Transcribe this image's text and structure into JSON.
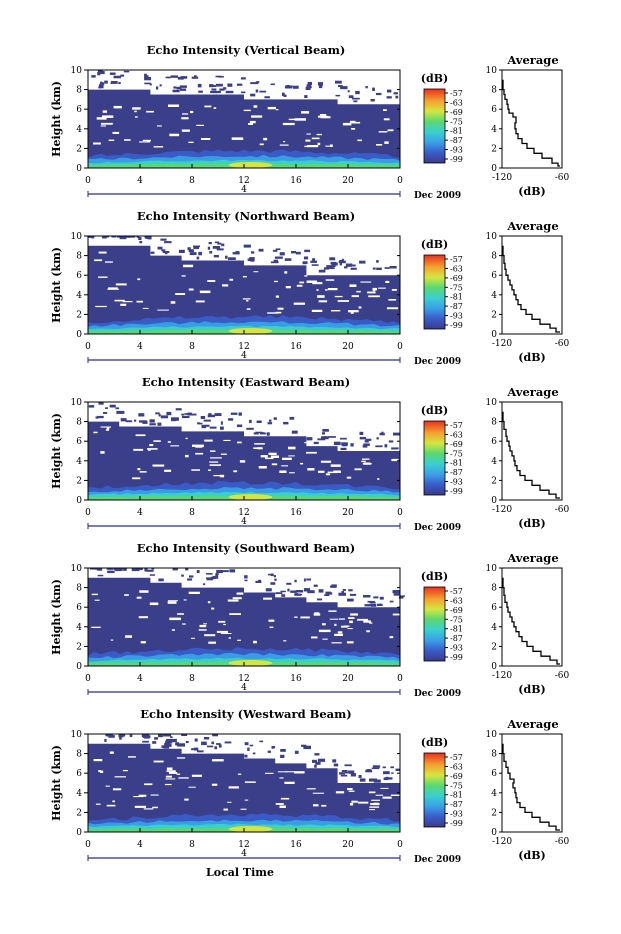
{
  "chart_data": [
    {
      "type": "heatmap",
      "title": "Echo Intensity (Vertical Beam)",
      "ylabel": "Height (km)",
      "xlim": [
        0,
        24
      ],
      "ylim": [
        0,
        10
      ],
      "x_ticks": [
        "0",
        "4",
        "8",
        "12",
        "16",
        "20",
        "0"
      ],
      "y_ticks": [
        "0",
        "2",
        "4",
        "6",
        "8",
        "10"
      ],
      "date_label": "Dec 2009",
      "day_label": "4",
      "colorbar_unit": "(dB)",
      "colorbar_ticks": [
        "-57",
        "-63",
        "-69",
        "-75",
        "-81",
        "-87",
        "-93",
        "-99"
      ],
      "echo_top_km": [
        8.0,
        8.0,
        7.5,
        7.5,
        7.5,
        7.0,
        7.0,
        7.0,
        6.5,
        6.5
      ],
      "profile": {
        "title": "Average",
        "xlabel": "(dB)",
        "xlim": [
          -120,
          -60
        ],
        "x_ticks": [
          "-120",
          "-60"
        ],
        "ylim": [
          0,
          10
        ],
        "x": [
          -62,
          -64,
          -70,
          -80,
          -88,
          -95,
          -100,
          -104,
          -106,
          -107,
          -106,
          -109,
          -113,
          -114,
          -115,
          -117,
          -118,
          -119,
          -119
        ],
        "y": [
          0.2,
          0.5,
          1.0,
          1.5,
          2.0,
          2.5,
          3.0,
          3.5,
          4.0,
          4.6,
          5.2,
          5.6,
          6.0,
          6.5,
          7.0,
          7.5,
          8.0,
          8.5,
          9.0
        ]
      }
    },
    {
      "type": "heatmap",
      "title": "Echo Intensity (Northward Beam)",
      "ylabel": "Height (km)",
      "xlim": [
        0,
        24
      ],
      "ylim": [
        0,
        10
      ],
      "x_ticks": [
        "0",
        "4",
        "8",
        "12",
        "16",
        "20",
        "0"
      ],
      "y_ticks": [
        "0",
        "2",
        "4",
        "6",
        "8",
        "10"
      ],
      "date_label": "Dec 2009",
      "day_label": "4",
      "colorbar_unit": "(dB)",
      "colorbar_ticks": [
        "-57",
        "-63",
        "-69",
        "-75",
        "-81",
        "-87",
        "-93",
        "-99"
      ],
      "echo_top_km": [
        9.0,
        9.0,
        8.0,
        7.5,
        7.5,
        7.0,
        7.0,
        6.0,
        6.0,
        6.0
      ],
      "profile": {
        "title": "Average",
        "xlabel": "(dB)",
        "xlim": [
          -120,
          -60
        ],
        "x_ticks": [
          "-120",
          "-60"
        ],
        "ylim": [
          0,
          10
        ],
        "x": [
          -62,
          -66,
          -72,
          -82,
          -90,
          -96,
          -101,
          -104,
          -106,
          -108,
          -110,
          -112,
          -114,
          -116,
          -117,
          -118,
          -119
        ],
        "y": [
          0.2,
          0.6,
          1.0,
          1.5,
          2.0,
          2.5,
          3.0,
          3.5,
          4.0,
          4.5,
          5.0,
          5.5,
          6.0,
          6.6,
          7.2,
          8.0,
          9.0
        ]
      }
    },
    {
      "type": "heatmap",
      "title": "Echo Intensity (Eastward Beam)",
      "ylabel": "Height (km)",
      "xlim": [
        0,
        24
      ],
      "ylim": [
        0,
        10
      ],
      "x_ticks": [
        "0",
        "4",
        "8",
        "12",
        "16",
        "20",
        "0"
      ],
      "y_ticks": [
        "0",
        "2",
        "4",
        "6",
        "8",
        "10"
      ],
      "date_label": "Dec 2009",
      "day_label": "4",
      "colorbar_unit": "(dB)",
      "colorbar_ticks": [
        "-57",
        "-63",
        "-69",
        "-75",
        "-81",
        "-87",
        "-93",
        "-99"
      ],
      "echo_top_km": [
        8.0,
        7.5,
        7.5,
        7.0,
        7.0,
        6.5,
        6.5,
        5.5,
        5.0,
        5.0
      ],
      "profile": {
        "title": "Average",
        "xlabel": "(dB)",
        "xlim": [
          -120,
          -60
        ],
        "x_ticks": [
          "-120",
          "-60"
        ],
        "ylim": [
          0,
          10
        ],
        "x": [
          -62,
          -66,
          -73,
          -82,
          -90,
          -97,
          -102,
          -105,
          -107,
          -108,
          -110,
          -112,
          -113,
          -115,
          -116,
          -118,
          -119
        ],
        "y": [
          0.2,
          0.6,
          1.0,
          1.5,
          2.0,
          2.5,
          3.0,
          3.5,
          4.0,
          4.5,
          5.0,
          5.5,
          6.0,
          6.5,
          7.2,
          8.0,
          9.0
        ]
      }
    },
    {
      "type": "heatmap",
      "title": "Echo Intensity (Southward Beam)",
      "ylabel": "Height (km)",
      "xlim": [
        0,
        24
      ],
      "ylim": [
        0,
        10
      ],
      "x_ticks": [
        "0",
        "4",
        "8",
        "12",
        "16",
        "20",
        "0"
      ],
      "y_ticks": [
        "0",
        "2",
        "4",
        "6",
        "8",
        "10"
      ],
      "date_label": "Dec 2009",
      "day_label": "4",
      "colorbar_unit": "(dB)",
      "colorbar_ticks": [
        "-57",
        "-63",
        "-69",
        "-75",
        "-81",
        "-87",
        "-93",
        "-99"
      ],
      "echo_top_km": [
        9.0,
        9.0,
        8.5,
        8.0,
        8.0,
        7.5,
        7.0,
        6.5,
        6.0,
        6.0
      ],
      "profile": {
        "title": "Average",
        "xlabel": "(dB)",
        "xlim": [
          -120,
          -60
        ],
        "x_ticks": [
          "-120",
          "-60"
        ],
        "ylim": [
          0,
          10
        ],
        "x": [
          -62,
          -65,
          -72,
          -81,
          -89,
          -95,
          -100,
          -103,
          -106,
          -108,
          -110,
          -112,
          -114,
          -115,
          -117,
          -118,
          -119
        ],
        "y": [
          0.2,
          0.6,
          1.0,
          1.5,
          2.0,
          2.5,
          3.0,
          3.5,
          4.0,
          4.5,
          5.0,
          5.5,
          6.0,
          6.5,
          7.2,
          8.0,
          9.0
        ]
      }
    },
    {
      "type": "heatmap",
      "title": "Echo Intensity (Westward Beam)",
      "ylabel": "Height (km)",
      "xlabel": "Local Time",
      "xlim": [
        0,
        24
      ],
      "ylim": [
        0,
        10
      ],
      "x_ticks": [
        "0",
        "4",
        "8",
        "12",
        "16",
        "20",
        "0"
      ],
      "y_ticks": [
        "0",
        "2",
        "4",
        "6",
        "8",
        "10"
      ],
      "date_label": "Dec 2009",
      "day_label": "4",
      "colorbar_unit": "(dB)",
      "colorbar_ticks": [
        "-57",
        "-63",
        "-69",
        "-75",
        "-81",
        "-87",
        "-93",
        "-99"
      ],
      "echo_top_km": [
        9.0,
        9.0,
        8.5,
        8.0,
        8.0,
        7.5,
        7.0,
        6.5,
        5.0,
        5.0
      ],
      "profile": {
        "title": "Average",
        "xlabel": "(dB)",
        "xlim": [
          -120,
          -60
        ],
        "x_ticks": [
          "-120",
          "-60"
        ],
        "ylim": [
          0,
          10
        ],
        "x": [
          -62,
          -66,
          -73,
          -82,
          -90,
          -97,
          -102,
          -105,
          -106,
          -107,
          -109,
          -108,
          -112,
          -114,
          -116,
          -118,
          -119
        ],
        "y": [
          0.2,
          0.6,
          1.0,
          1.5,
          2.0,
          2.5,
          3.0,
          3.5,
          4.0,
          4.5,
          5.0,
          5.4,
          6.0,
          6.6,
          7.2,
          8.0,
          9.0
        ]
      }
    }
  ]
}
